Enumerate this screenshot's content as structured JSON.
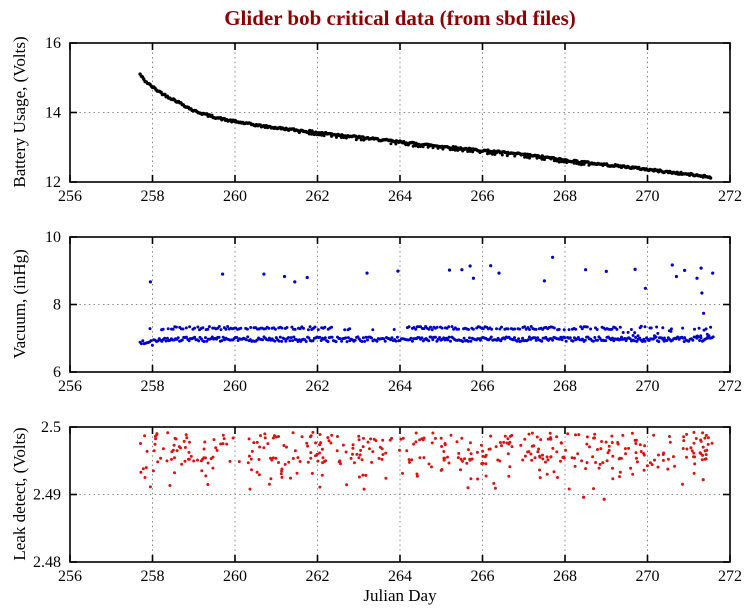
{
  "title": {
    "text": "Glider bob critical data (from sbd files)",
    "color": "#8b0000"
  },
  "xlabel": "Julian Day",
  "axes_color": "#000000",
  "grid_color": "#888888",
  "chart_data": [
    {
      "type": "scatter",
      "series_name": "battery-usage",
      "ylabel": "Battery Usage, (Volts)",
      "color": "#000000",
      "xlim": [
        256,
        272
      ],
      "ylim": [
        12,
        16
      ],
      "xticks": [
        256,
        258,
        260,
        262,
        264,
        266,
        268,
        270,
        272
      ],
      "xtick_labels": [
        "256",
        "258",
        "260",
        "262",
        "264",
        "266",
        "268",
        "270",
        "272"
      ],
      "yticks": [
        12,
        14,
        16
      ],
      "ytick_labels": [
        "12",
        "14",
        "16"
      ],
      "grid_x": [
        258,
        260,
        262,
        264,
        266,
        268,
        270
      ],
      "grid_y": [
        14
      ],
      "x_start": 257.7,
      "x_end": 271.55,
      "point_step": 0.03,
      "jitter": 0.03,
      "trend_x": [
        257.7,
        257.8,
        257.95,
        258.1,
        258.3,
        258.6,
        259.0,
        259.4,
        259.8,
        260.2,
        260.7,
        261.2,
        261.8,
        262.5,
        263.2,
        264.0,
        264.8,
        265.6,
        266.4,
        267.2,
        268.0,
        268.8,
        269.6,
        270.4,
        271.0,
        271.55
      ],
      "trend_y": [
        15.1,
        14.93,
        14.78,
        14.65,
        14.5,
        14.32,
        14.05,
        13.9,
        13.78,
        13.7,
        13.6,
        13.53,
        13.45,
        13.36,
        13.26,
        13.15,
        13.05,
        12.95,
        12.86,
        12.76,
        12.63,
        12.52,
        12.42,
        12.3,
        12.22,
        12.14
      ],
      "secondary_offset": -0.07,
      "secondary_range": [
        261.5,
        268.6
      ]
    },
    {
      "type": "scatter",
      "series_name": "vacuum",
      "ylabel": "Vacuum, (inHg)",
      "color": "#0000cc",
      "xlim": [
        256,
        272
      ],
      "ylim": [
        6,
        10
      ],
      "xticks": [
        256,
        258,
        260,
        262,
        264,
        266,
        268,
        270,
        272
      ],
      "xtick_labels": [
        "256",
        "258",
        "260",
        "262",
        "264",
        "266",
        "268",
        "270",
        "272"
      ],
      "yticks": [
        6,
        8,
        10
      ],
      "ytick_labels": [
        "6",
        "8",
        "10"
      ],
      "grid_x": [
        258,
        260,
        262,
        264,
        266,
        268,
        270
      ],
      "grid_y": [
        8
      ],
      "x_start": 257.7,
      "x_end": 271.6,
      "band_lower": {
        "mean": 6.97,
        "spread": 0.07,
        "step": 0.033
      },
      "band_upper": {
        "mean": 7.3,
        "spread": 0.05,
        "step": 0.04,
        "segments": [
          [
            258.2,
            262.35
          ],
          [
            264.15,
            269.25
          ]
        ],
        "density": 0.8,
        "sparse_density": 0.08
      },
      "mixed_tail": {
        "range": [
          269.25,
          271.6
        ],
        "min": 6.88,
        "max": 7.36,
        "density": 0.5,
        "step": 0.04
      },
      "outliers_x": [
        257.95,
        259.7,
        260.7,
        261.2,
        261.45,
        261.75,
        263.2,
        263.95,
        265.2,
        265.5,
        265.7,
        265.78,
        266.2,
        266.4,
        267.5,
        267.7,
        268.5,
        269.0,
        269.7,
        269.95,
        270.6,
        270.7,
        270.9,
        271.2,
        271.3,
        271.32,
        271.36,
        271.58
      ],
      "outliers_y": [
        8.67,
        8.9,
        8.9,
        8.83,
        8.67,
        8.8,
        8.93,
        8.99,
        9.02,
        9.03,
        9.14,
        8.78,
        9.15,
        8.93,
        8.7,
        9.4,
        9.03,
        8.98,
        9.04,
        8.48,
        9.17,
        8.83,
        9.01,
        8.78,
        9.08,
        8.34,
        7.74,
        8.93
      ]
    },
    {
      "type": "scatter",
      "series_name": "leak-detect",
      "ylabel": "Leak detect, (Volts)",
      "color": "#dd1111",
      "xlim": [
        256,
        272
      ],
      "ylim": [
        2.48,
        2.5
      ],
      "xticks": [
        256,
        258,
        260,
        262,
        264,
        266,
        268,
        270,
        272
      ],
      "xtick_labels": [
        "256",
        "258",
        "260",
        "262",
        "264",
        "266",
        "268",
        "270",
        "272"
      ],
      "yticks": [
        2.48,
        2.49,
        2.5
      ],
      "ytick_labels": [
        "2.48",
        "2.49",
        "2.5"
      ],
      "grid_x": [
        258,
        260,
        262,
        264,
        266,
        268,
        270
      ],
      "grid_y": [
        2.49
      ],
      "x_start": 257.7,
      "x_end": 271.6,
      "cloud": {
        "count": 430,
        "layers": [
          {
            "min": 2.4945,
            "max": 2.4992,
            "weight": 0.7
          },
          {
            "min": 2.4923,
            "max": 2.4956,
            "weight": 0.25
          },
          {
            "min": 2.4907,
            "max": 2.4931,
            "weight": 0.05
          }
        ]
      },
      "outliers_x": [
        268.45,
        268.95,
        271.35
      ],
      "outliers_y": [
        2.4896,
        2.4893,
        2.4922
      ]
    }
  ]
}
